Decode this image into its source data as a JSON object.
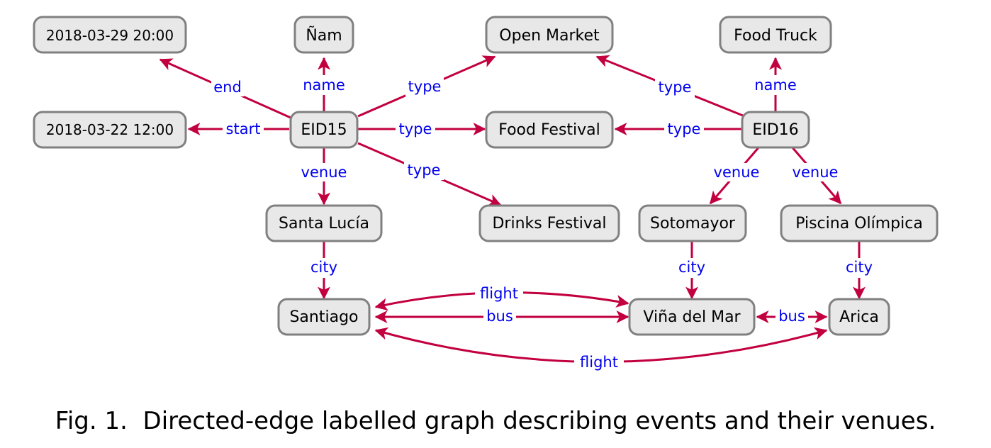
{
  "nodes": {
    "end_time": "2018-03-29 20:00",
    "nam": "Ñam",
    "open_market": "Open Market",
    "food_truck": "Food Truck",
    "start_time": "2018-03-22 12:00",
    "eid15": "EID15",
    "food_festival": "Food Festival",
    "eid16": "EID16",
    "santa_lucia": "Santa Lucía",
    "drinks_festival": "Drinks Festival",
    "sotomayor": "Sotomayor",
    "piscina": "Piscina Olímpica",
    "santiago": "Santiago",
    "vina": "Viña del Mar",
    "arica": "Arica"
  },
  "edges": {
    "end": "end",
    "name15": "name",
    "type_open15": "type",
    "start": "start",
    "type_food15": "type",
    "venue15": "venue",
    "type_drinks15": "type",
    "type_open16": "type",
    "name16": "name",
    "type_food16": "type",
    "venue16a": "venue",
    "venue16b": "venue",
    "city_santa": "city",
    "city_soto": "city",
    "city_pisc": "city",
    "flight_sv": "flight",
    "bus_sv": "bus",
    "bus_va": "bus",
    "flight_sa": "flight"
  },
  "colors": {
    "edge": "#c2003f",
    "label": "#0000ee",
    "node_fill": "#e8e8e8",
    "node_border": "#808080"
  },
  "caption": "Fig. 1.  Directed-edge labelled graph describing events and their venues."
}
